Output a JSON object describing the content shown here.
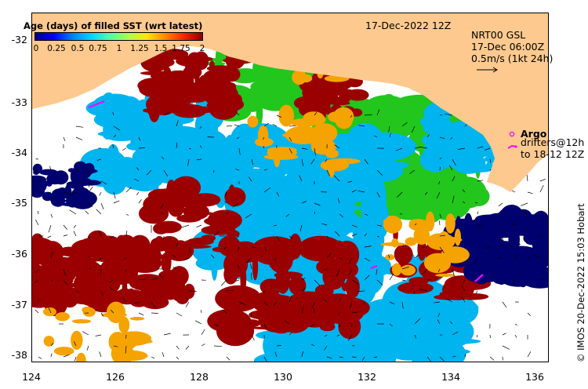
{
  "title_date": "17-Dec-2022 12Z",
  "colorbar": {
    "title": "Age (days) of filled SST (wrt latest)",
    "ticks": [
      "0",
      "0.25",
      "0.5",
      "0.75",
      "1",
      "1.25",
      "1.5",
      "1.75",
      "2"
    ],
    "colors": [
      "#00007f",
      "#0000ff",
      "#0080ff",
      "#00d4ff",
      "#4cffaa",
      "#aaff4c",
      "#ffe600",
      "#ff8800",
      "#ff2200",
      "#8b0000"
    ]
  },
  "current_info": {
    "line1": "NRT00 GSL",
    "line2": "17-Dec 06:00Z",
    "line3": "0.5m/s (1kt 24h)"
  },
  "argo_legend": {
    "label": "Argo",
    "line2": "drifters@12h",
    "line3": "to 18-12 12Z",
    "marker_color": "#ff00ff"
  },
  "axes": {
    "x_ticks": [
      "124",
      "126",
      "128",
      "130",
      "132",
      "134",
      "136"
    ],
    "y_ticks": [
      "-32",
      "-33",
      "-34",
      "-35",
      "-36",
      "-37",
      "-38"
    ]
  },
  "credit": "© IMOS 20-Dec-2022 15:03 Hobart",
  "colors": {
    "land": "#fdc98e",
    "recent_green": "#22c61c",
    "lightblue": "#00b4f0",
    "darkred": "#9b0000",
    "orange": "#f5a300",
    "navy": "#00006e",
    "argo": "#ff00ff"
  }
}
